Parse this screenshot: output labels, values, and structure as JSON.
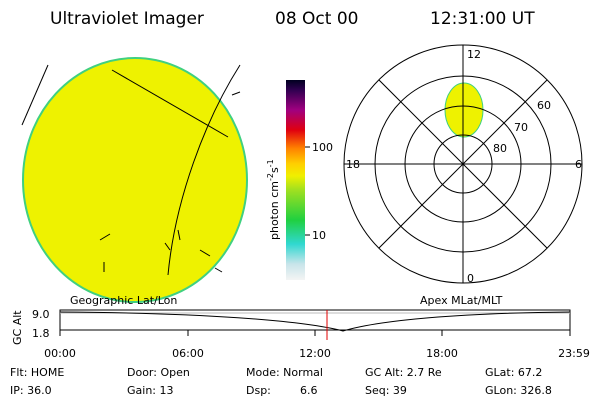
{
  "header": {
    "title": "Ultraviolet Imager",
    "date": "08 Oct 00",
    "time": "12:31:00 UT"
  },
  "colorbar": {
    "label": [
      "photon cm",
      "-2",
      "s",
      "-1"
    ],
    "ticks": [
      "100",
      "10"
    ]
  },
  "polar": {
    "hour_labels": [
      "12",
      "18",
      "6",
      "0"
    ],
    "lat_labels": [
      "60",
      "70",
      "80"
    ]
  },
  "timeline": {
    "left_title": "Geographic Lat/Lon",
    "right_title": "Apex MLat/MLT",
    "axis_label": "GC Alt",
    "y_labels": [
      "9.0",
      "1.8"
    ],
    "x_labels": [
      "00:00",
      "06:00",
      "12:00",
      "18:00",
      "23:59"
    ]
  },
  "info": [
    [
      "Flt: HOME",
      "IP: 36.0"
    ],
    [
      "Door: Open",
      "Gain: 13"
    ],
    [
      "Mode: Normal",
      "Dsp:",
      "6.6"
    ],
    [
      "GC Alt: 2.7 Re",
      "Seq: 39"
    ],
    [
      "GLat: 67.2",
      "GLon: 326.8"
    ]
  ]
}
